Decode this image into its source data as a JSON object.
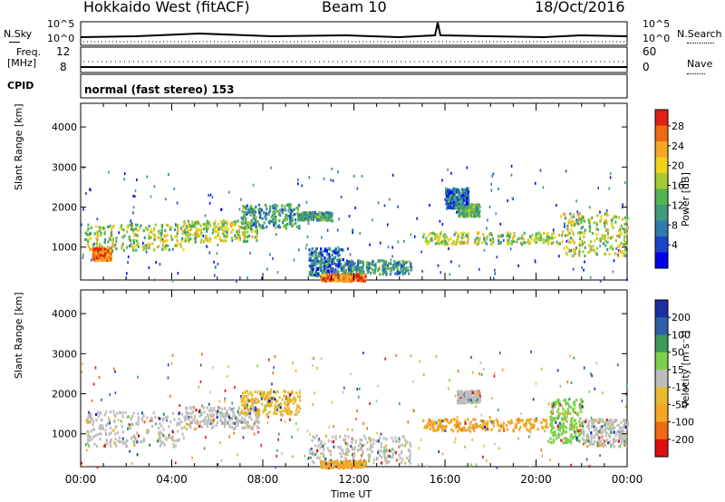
{
  "header": {
    "station": "Hokkaido West (fitACF)",
    "beam": "Beam 10",
    "date": "18/Oct/2016"
  },
  "top_panels": {
    "nsky_label": "N.Sky",
    "nsky_ticks": [
      "10^5",
      "10^0"
    ],
    "nsearch_label": "N.Search",
    "nsearch_ticks": [
      "10^5",
      "10^0"
    ],
    "freq_label": "Freq.",
    "freq_unit": "[MHz]",
    "freq_ticks": [
      "12",
      "8"
    ],
    "nave_label": "Nave",
    "nave_ticks": [
      "60",
      "0"
    ],
    "cpid_label": "CPID",
    "cpid_value": "normal (fast stereo) 153"
  },
  "chart_data": [
    {
      "type": "heatmap",
      "panel": "power",
      "ylabel": "Slant Range [km]",
      "yticks": [
        "1000",
        "2000",
        "3000",
        "4000"
      ],
      "ylim": [
        180,
        4590
      ],
      "xlim": [
        0,
        24
      ],
      "colorbar_label": "Power [dB]",
      "colorbar_ticks": [
        "4",
        "8",
        "12",
        "16",
        "20",
        "24",
        "28"
      ],
      "colorscale": [
        "#0000ee",
        "#1b46c8",
        "#2f7bb0",
        "#3e9a7a",
        "#52b450",
        "#a4cc30",
        "#f2d21a",
        "#f5a623",
        "#ee6a12",
        "#e02010"
      ],
      "bands": [
        {
          "t0": 0.2,
          "t1": 4.5,
          "r0": 950,
          "r1": 1600,
          "level": 5
        },
        {
          "t0": 0.5,
          "t1": 1.3,
          "r0": 700,
          "r1": 1000,
          "level": 8
        },
        {
          "t0": 4.5,
          "t1": 7.8,
          "r0": 1150,
          "r1": 1700,
          "level": 5
        },
        {
          "t0": 7.0,
          "t1": 9.6,
          "r0": 1500,
          "r1": 2100,
          "level": 3
        },
        {
          "t0": 10.0,
          "t1": 11.5,
          "r0": 300,
          "r1": 1000,
          "level": 2
        },
        {
          "t0": 11.5,
          "t1": 14.5,
          "r0": 350,
          "r1": 700,
          "level": 3
        },
        {
          "t0": 10.5,
          "t1": 12.5,
          "r0": 180,
          "r1": 350,
          "level": 8
        },
        {
          "t0": 15.0,
          "t1": 21.0,
          "r0": 1100,
          "r1": 1400,
          "level": 5
        },
        {
          "t0": 16.5,
          "t1": 17.5,
          "r0": 1800,
          "r1": 2100,
          "level": 4
        },
        {
          "t0": 21.0,
          "t1": 24.0,
          "r0": 800,
          "r1": 1900,
          "level": 5
        },
        {
          "t0": 9.5,
          "t1": 11.0,
          "r0": 1700,
          "r1": 1900,
          "level": 3
        },
        {
          "t0": 16.0,
          "t1": 17.0,
          "r0": 2000,
          "r1": 2500,
          "level": 2
        }
      ]
    },
    {
      "type": "heatmap",
      "panel": "velocity",
      "ylabel": "Slant Range [km]",
      "yticks": [
        "1000",
        "2000",
        "3000",
        "4000"
      ],
      "ylim": [
        180,
        4590
      ],
      "xlim": [
        0,
        24
      ],
      "xticks": [
        "00:00",
        "04:00",
        "08:00",
        "12:00",
        "16:00",
        "20:00",
        "00:00"
      ],
      "xlabel": "Time UT",
      "colorbar_label": "Velocity [m s⁻¹]",
      "colorbar_ticks": [
        "-200",
        "-100",
        "-50",
        "-15",
        "15",
        "50",
        "100",
        "200"
      ],
      "colorscale": [
        "#e01010",
        "#ee6a12",
        "#f5a623",
        "#e8b830",
        "#bdbdbd",
        "#7ed04a",
        "#3e9a5a",
        "#2e5fa8",
        "#1c2fa0"
      ],
      "bands": [
        {
          "t0": 0.2,
          "t1": 4.5,
          "r0": 700,
          "r1": 1600,
          "color": "#bdbdbd"
        },
        {
          "t0": 4.5,
          "t1": 7.8,
          "r0": 1150,
          "r1": 1700,
          "color": "#bdbdbd"
        },
        {
          "t0": 7.0,
          "t1": 9.6,
          "r0": 1500,
          "r1": 2100,
          "color": "#e8b830"
        },
        {
          "t0": 10.0,
          "t1": 14.5,
          "r0": 300,
          "r1": 1000,
          "color": "#bdbdbd"
        },
        {
          "t0": 10.5,
          "t1": 12.5,
          "r0": 180,
          "r1": 350,
          "color": "#f5a623"
        },
        {
          "t0": 15.0,
          "t1": 20.5,
          "r0": 1100,
          "r1": 1400,
          "color": "#f5a623"
        },
        {
          "t0": 16.5,
          "t1": 17.5,
          "r0": 1800,
          "r1": 2100,
          "color": "#bdbdbd"
        },
        {
          "t0": 20.5,
          "t1": 22.0,
          "r0": 800,
          "r1": 1900,
          "color": "#7ed04a"
        },
        {
          "t0": 22.0,
          "t1": 24.0,
          "r0": 700,
          "r1": 1400,
          "color": "#bdbdbd"
        }
      ]
    }
  ]
}
